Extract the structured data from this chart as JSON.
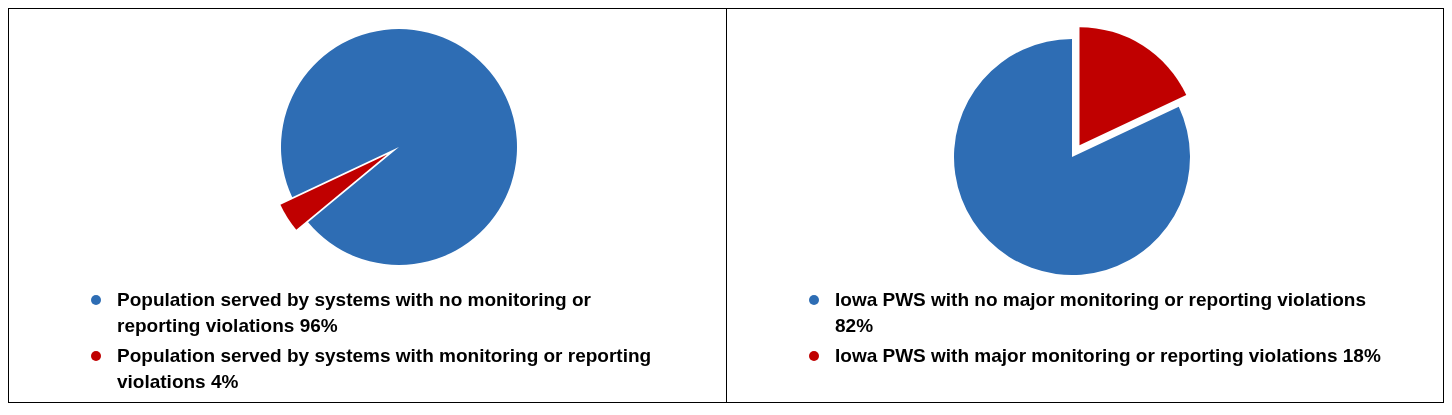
{
  "chart_data": [
    {
      "type": "pie",
      "categories": [
        "Population served by systems with no monitoring or reporting violations",
        "Population served by systems with monitoring or reporting violations"
      ],
      "values": [
        96,
        4
      ],
      "value_labels": [
        "96%",
        "4%"
      ],
      "colors": [
        "#2e6db4",
        "#c00000"
      ],
      "legend": "bottom"
    },
    {
      "type": "pie",
      "categories": [
        "Iowa PWS with no major monitoring or reporting violations",
        "Iowa PWS with major monitoring or reporting violations"
      ],
      "values": [
        82,
        18
      ],
      "value_labels": [
        "82%",
        "18%"
      ],
      "colors": [
        "#2e6db4",
        "#c00000"
      ],
      "legend": "bottom"
    }
  ]
}
